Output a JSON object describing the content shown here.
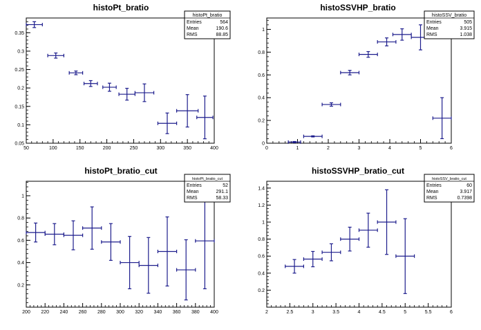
{
  "chart_data": [
    {
      "type": "scatter",
      "title": "histoPt_bratio",
      "xlabel": "",
      "ylabel": "",
      "xlim": [
        50,
        400
      ],
      "ylim": [
        0.05,
        0.39
      ],
      "x_ticks": [
        50,
        100,
        150,
        200,
        250,
        300,
        350,
        400
      ],
      "y_ticks": [
        0.05,
        0.1,
        0.15,
        0.2,
        0.25,
        0.3,
        0.35
      ],
      "y_tick_labels": [
        "0.05",
        "0.1",
        "0.15",
        "0.2",
        "0.25",
        "0.3",
        "0.35"
      ],
      "x_tick_labels": [
        "50",
        "100",
        "150",
        "200",
        "250",
        "300",
        "350",
        "400"
      ],
      "stats": {
        "name": "histoPt_bratio",
        "rows": [
          [
            "Entries",
            "564"
          ],
          [
            "Mean",
            "190.6"
          ],
          [
            "RMS",
            "88.85"
          ]
        ]
      },
      "series": [
        {
          "x": [
            65,
            105,
            142.5,
            170,
            205,
            237.5,
            270,
            312.5,
            350,
            382.5
          ],
          "y": [
            0.372,
            0.288,
            0.241,
            0.212,
            0.202,
            0.183,
            0.187,
            0.104,
            0.138,
            0.12
          ],
          "xerr": [
            15,
            15,
            12.5,
            12.5,
            12.5,
            15,
            17.5,
            17.5,
            20,
            15
          ],
          "yerr": [
            0.008,
            0.007,
            0.005,
            0.008,
            0.011,
            0.016,
            0.024,
            0.028,
            0.044,
            0.058
          ]
        }
      ]
    },
    {
      "type": "scatter",
      "title": "histoSSVHP_bratio",
      "xlabel": "",
      "ylabel": "",
      "xlim": [
        0,
        6
      ],
      "ylim": [
        0,
        1.1
      ],
      "x_ticks": [
        0,
        1,
        2,
        3,
        4,
        5,
        6
      ],
      "y_ticks": [
        0,
        0.2,
        0.4,
        0.6,
        0.8,
        1
      ],
      "y_tick_labels": [
        "0",
        "0.2",
        "0.4",
        "0.6",
        "0.8",
        "1"
      ],
      "x_tick_labels": [
        "0",
        "1",
        "2",
        "3",
        "4",
        "5",
        "6"
      ],
      "stats": {
        "name": "histoSSV_bratio",
        "rows": [
          [
            "Entries",
            "505"
          ],
          [
            "Mean",
            "3.915"
          ],
          [
            "RMS",
            "1.038"
          ]
        ]
      },
      "series": [
        {
          "x": [
            0.9,
            1.5,
            2.1,
            2.7,
            3.3,
            3.9,
            4.4,
            5.0,
            5.7
          ],
          "y": [
            0.01,
            0.06,
            0.34,
            0.62,
            0.78,
            0.89,
            0.955,
            0.93,
            0.22
          ],
          "xerr": [
            0.2,
            0.3,
            0.3,
            0.3,
            0.3,
            0.3,
            0.3,
            0.3,
            0.3
          ],
          "yerr": [
            0.005,
            0.005,
            0.015,
            0.02,
            0.025,
            0.035,
            0.05,
            0.11,
            0.18
          ]
        }
      ]
    },
    {
      "type": "scatter",
      "title": "histoPt_bratio_cut",
      "xlabel": "",
      "ylabel": "",
      "xlim": [
        200,
        400
      ],
      "ylim": [
        0,
        1.13
      ],
      "x_ticks": [
        200,
        220,
        240,
        260,
        280,
        300,
        320,
        340,
        360,
        380,
        400
      ],
      "y_ticks": [
        0.2,
        0.4,
        0.6,
        0.8,
        1
      ],
      "y_tick_labels": [
        "0.2",
        "0.4",
        "0.6",
        "0.8",
        "1"
      ],
      "x_tick_labels": [
        "200",
        "220",
        "240",
        "260",
        "280",
        "300",
        "320",
        "340",
        "360",
        "380",
        "400"
      ],
      "stats": {
        "name": "histoPt_bratio_cut",
        "rows": [
          [
            "Entries",
            "52"
          ],
          [
            "Mean",
            "291.1"
          ],
          [
            "RMS",
            "58.33"
          ]
        ]
      },
      "series": [
        {
          "x": [
            210,
            230,
            250,
            270,
            290,
            310,
            330,
            350,
            370,
            390
          ],
          "y": [
            0.67,
            0.655,
            0.645,
            0.71,
            0.585,
            0.4,
            0.375,
            0.5,
            0.335,
            0.595
          ],
          "xerr": [
            10,
            10,
            10,
            10,
            10,
            10,
            10,
            10,
            10,
            10
          ],
          "yerr": [
            0.085,
            0.095,
            0.13,
            0.19,
            0.165,
            0.235,
            0.25,
            0.31,
            0.27,
            0.43
          ]
        }
      ]
    },
    {
      "type": "scatter",
      "title": "histoSSVHP_bratio_cut",
      "xlabel": "",
      "ylabel": "",
      "xlim": [
        2,
        6
      ],
      "ylim": [
        0,
        1.48
      ],
      "x_ticks": [
        2,
        2.5,
        3,
        3.5,
        4,
        4.5,
        5,
        5.5,
        6
      ],
      "y_ticks": [
        0.2,
        0.4,
        0.6,
        0.8,
        1,
        1.2,
        1.4
      ],
      "y_tick_labels": [
        "0.2",
        "0.4",
        "0.6",
        "0.8",
        "1",
        "1.2",
        "1.4"
      ],
      "x_tick_labels": [
        "2",
        "2.5",
        "3",
        "3.5",
        "4",
        "4.5",
        "5",
        "5.5",
        "6"
      ],
      "stats": {
        "name": "histoSSV_bratio_cut",
        "rows": [
          [
            "Entries",
            "60"
          ],
          [
            "Mean",
            "3.917"
          ],
          [
            "RMS",
            "0.7398"
          ]
        ]
      },
      "series": [
        {
          "x": [
            2.6,
            3.0,
            3.4,
            3.8,
            4.2,
            4.6,
            5.0
          ],
          "y": [
            0.48,
            0.565,
            0.645,
            0.8,
            0.905,
            1.0,
            0.6
          ],
          "xerr": [
            0.2,
            0.2,
            0.2,
            0.2,
            0.2,
            0.2,
            0.2
          ],
          "yerr": [
            0.08,
            0.09,
            0.1,
            0.14,
            0.2,
            0.38,
            0.44
          ]
        }
      ]
    }
  ],
  "colors": {
    "marker": "#1c1c8c",
    "axis": "#000000",
    "background": "#ffffff"
  }
}
